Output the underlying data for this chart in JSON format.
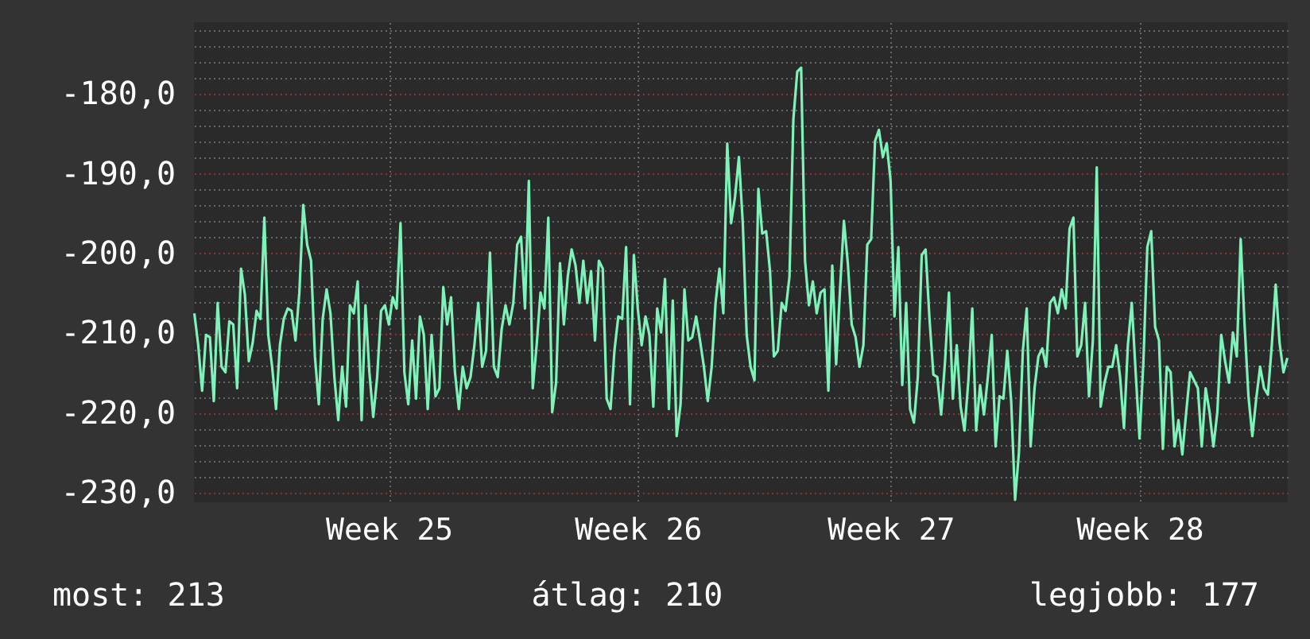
{
  "chart_data": {
    "type": "line",
    "annotations": [
      "most: 213",
      "átlag: 210",
      "legjobb: 177"
    ],
    "categories": [
      null,
      null,
      null,
      null,
      null,
      null,
      null,
      null,
      null,
      null,
      null,
      null,
      null,
      null,
      null,
      null,
      null,
      null,
      null,
      null,
      null,
      null,
      null,
      null,
      null,
      null,
      null,
      null,
      null,
      null,
      null,
      null,
      null,
      null,
      null,
      null,
      null,
      null,
      null,
      null,
      null,
      null,
      null,
      null,
      null,
      null,
      null,
      null,
      null,
      null,
      "Week 25",
      null,
      null,
      null,
      null,
      null,
      null,
      null,
      null,
      null,
      null,
      null,
      null,
      null,
      null,
      null,
      null,
      null,
      null,
      null,
      null,
      null,
      null,
      null,
      null,
      null,
      null,
      null,
      null,
      null,
      null,
      null,
      null,
      null,
      null,
      null,
      null,
      null,
      null,
      null,
      null,
      null,
      null,
      null,
      null,
      null,
      null,
      null,
      null,
      null,
      null,
      null,
      null,
      null,
      null,
      null,
      null,
      null,
      null,
      null,
      null,
      null,
      null,
      null,
      "Week 26",
      null,
      null,
      null,
      null,
      null,
      null,
      null,
      null,
      null,
      null,
      null,
      null,
      null,
      null,
      null,
      null,
      null,
      null,
      null,
      null,
      null,
      null,
      null,
      null,
      null,
      null,
      null,
      null,
      null,
      null,
      null,
      null,
      null,
      null,
      null,
      null,
      null,
      null,
      null,
      null,
      null,
      null,
      null,
      null,
      null,
      null,
      null,
      null,
      null,
      null,
      null,
      null,
      null,
      null,
      null,
      null,
      null,
      null,
      null,
      null,
      null,
      null,
      null,
      null,
      "Week 27",
      null,
      null,
      null,
      null,
      null,
      null,
      null,
      null,
      null,
      null,
      null,
      null,
      null,
      null,
      null,
      null,
      null,
      null,
      null,
      null,
      null,
      null,
      null,
      null,
      null,
      null,
      null,
      null,
      null,
      null,
      null,
      null,
      null,
      null,
      null,
      null,
      null,
      null,
      null,
      null,
      null,
      null,
      null,
      null,
      null,
      null,
      null,
      null,
      null,
      null,
      null,
      null,
      null,
      null,
      null,
      null,
      null,
      null,
      null,
      null,
      null,
      null,
      null,
      "Week 28",
      null,
      null,
      null,
      null,
      null,
      null,
      null,
      null,
      null,
      null,
      null,
      null,
      null,
      null,
      null,
      null,
      null,
      null,
      null,
      null,
      null,
      null,
      null,
      null,
      null,
      null,
      null,
      null,
      null,
      null,
      null,
      null,
      null,
      null,
      null,
      null,
      null,
      null
    ],
    "series": [
      {
        "color": "#7ff2b9",
        "values": [
          -207.5,
          -211.5,
          -217.2,
          -210.2,
          -210.5,
          -218.5,
          -206.2,
          -214.2,
          -214.9,
          -208.5,
          -208.9,
          -216.9,
          -201.9,
          -205.2,
          -213.5,
          -211.2,
          -207.2,
          -208.2,
          -195.5,
          -210.2,
          -214.2,
          -219.5,
          -211.5,
          -208.2,
          -206.9,
          -207.2,
          -210.9,
          -204.9,
          -193.9,
          -198.9,
          -200.9,
          -212.9,
          -218.9,
          -208.2,
          -204.5,
          -207.5,
          -215.5,
          -220.9,
          -214.2,
          -219.2,
          -206.5,
          -207.5,
          -203.5,
          -220.9,
          -206.5,
          -214.9,
          -220.5,
          -215.5,
          -207.2,
          -206.5,
          -208.9,
          -205.5,
          -206.9,
          -196.2,
          -214.9,
          -218.9,
          -210.9,
          -218.2,
          -207.9,
          -210.2,
          -219.5,
          -210.2,
          -217.9,
          -216.9,
          -204.2,
          -208.9,
          -205.5,
          -214.9,
          -219.5,
          -214.2,
          -216.9,
          -215.5,
          -211.5,
          -206.2,
          -214.2,
          -212.2,
          -199.9,
          -214.2,
          -215.5,
          -209.5,
          -206.5,
          -208.9,
          -206.2,
          -198.9,
          -197.9,
          -206.9,
          -190.9,
          -216.9,
          -211.5,
          -204.9,
          -206.9,
          -195.5,
          -219.9,
          -216.2,
          -201.2,
          -208.9,
          -202.9,
          -199.5,
          -201.5,
          -206.2,
          -200.9,
          -206.2,
          -202.2,
          -210.9,
          -200.9,
          -201.9,
          -218.2,
          -219.5,
          -212.2,
          -207.9,
          -208.2,
          -199.2,
          -218.9,
          -200.2,
          -206.9,
          -211.5,
          -207.9,
          -210.2,
          -219.2,
          -206.9,
          -209.9,
          -203.2,
          -219.5,
          -205.9,
          -222.9,
          -218.9,
          -204.5,
          -210.9,
          -210.5,
          -207.9,
          -210.9,
          -214.2,
          -218.5,
          -214.2,
          -206.2,
          -201.9,
          -207.5,
          -186.2,
          -196.2,
          -192.9,
          -187.9,
          -196.2,
          -210.2,
          -214.2,
          -215.9,
          -191.9,
          -197.5,
          -197.2,
          -202.2,
          -212.9,
          -212.2,
          -206.2,
          -207.2,
          -202.9,
          -183.2,
          -177.2,
          -176.7,
          -200.9,
          -206.5,
          -203.5,
          -207.5,
          -204.9,
          -204.5,
          -217.2,
          -201.5,
          -213.9,
          -204.5,
          -195.9,
          -201.2,
          -208.9,
          -210.5,
          -214.2,
          -211.5,
          -198.9,
          -198.2,
          -185.9,
          -184.5,
          -187.9,
          -186.2,
          -190.9,
          -207.9,
          -199.2,
          -216.5,
          -206.2,
          -219.5,
          -221.2,
          -215.5,
          -200.2,
          -199.5,
          -208.2,
          -215.2,
          -215.5,
          -220.2,
          -213.5,
          -204.9,
          -218.2,
          -211.5,
          -219.2,
          -222.2,
          -215.9,
          -206.9,
          -222.2,
          -216.5,
          -220.2,
          -215.5,
          -210.2,
          -224.2,
          -217.9,
          -218.2,
          -212.2,
          -218.5,
          -230.9,
          -224.9,
          -212.2,
          -206.9,
          -224.2,
          -216.9,
          -212.9,
          -211.9,
          -214.2,
          -206.2,
          -205.5,
          -207.5,
          -204.5,
          -206.9,
          -196.9,
          -195.5,
          -212.9,
          -211.5,
          -206.2,
          -217.9,
          -210.9,
          -189.2,
          -219.2,
          -216.2,
          -214.2,
          -214.2,
          -211.5,
          -215.5,
          -221.9,
          -211.5,
          -206.2,
          -214.9,
          -223.2,
          -213.5,
          -199.2,
          -197.2,
          -209.2,
          -210.9,
          -224.5,
          -214.2,
          -214.9,
          -224.2,
          -220.9,
          -225.2,
          -219.9,
          -214.9,
          -215.9,
          -216.9,
          -224.2,
          -216.9,
          -219.9,
          -224.2,
          -219.9,
          -210.2,
          -213.5,
          -216.2,
          -209.9,
          -212.9,
          -198.2,
          -208.9,
          -217.9,
          -222.9,
          -218.2,
          -214.2,
          -216.9,
          -217.7,
          -211.5,
          -203.9,
          -211.2,
          -214.9,
          -213.1
        ]
      }
    ],
    "ylim": [
      -231.2,
      -171
    ],
    "yticks": [
      {
        "value": -230,
        "label": "-230,0"
      },
      {
        "value": -228,
        "label": null
      },
      {
        "value": -226,
        "label": null
      },
      {
        "value": -224,
        "label": null
      },
      {
        "value": -222,
        "label": null
      },
      {
        "value": -220,
        "label": "-220,0"
      },
      {
        "value": -218,
        "label": null
      },
      {
        "value": -216,
        "label": null
      },
      {
        "value": -214,
        "label": null
      },
      {
        "value": -212,
        "label": null
      },
      {
        "value": -210,
        "label": "-210,0"
      },
      {
        "value": -208,
        "label": null
      },
      {
        "value": -206,
        "label": null
      },
      {
        "value": -204,
        "label": null
      },
      {
        "value": -202,
        "label": null
      },
      {
        "value": -200,
        "label": "-200,0"
      },
      {
        "value": -198,
        "label": null
      },
      {
        "value": -196,
        "label": null
      },
      {
        "value": -194,
        "label": null
      },
      {
        "value": -192,
        "label": null
      },
      {
        "value": -190,
        "label": "-190,0"
      },
      {
        "value": -188,
        "label": null
      },
      {
        "value": -186,
        "label": null
      },
      {
        "value": -184,
        "label": null
      },
      {
        "value": -182,
        "label": null
      },
      {
        "value": -180,
        "label": "-180,0"
      },
      {
        "value": -178,
        "label": null
      },
      {
        "value": -176,
        "label": null
      },
      {
        "value": -174,
        "label": null
      },
      {
        "value": -172,
        "label": null
      }
    ],
    "grid": true,
    "line_style": "solid"
  }
}
